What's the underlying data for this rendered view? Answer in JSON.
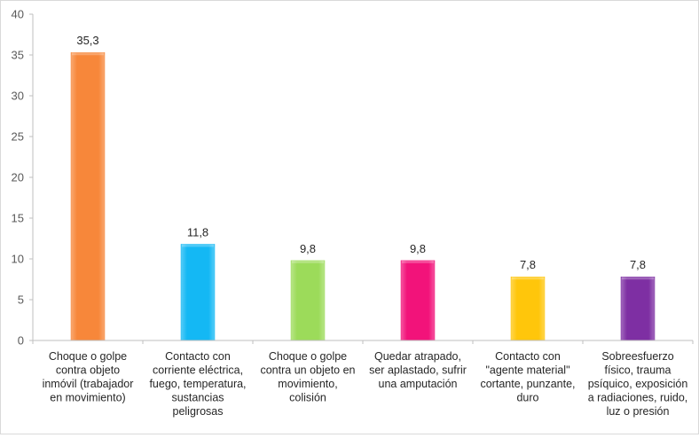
{
  "chart_data": {
    "type": "bar",
    "title": "",
    "xlabel": "",
    "ylabel": "",
    "ylim": [
      0,
      40
    ],
    "yticks": [
      0,
      5,
      10,
      15,
      20,
      25,
      30,
      35,
      40
    ],
    "grid": false,
    "legend": "none",
    "categories": [
      "Choque o golpe contra objeto inmóvil  (trabajador en movimiento)",
      "Contacto con corriente eléctrica, fuego, temperatura, sustancias peligrosas",
      "Choque o golpe contra un objeto en movimiento, colisión",
      "Quedar atrapado, ser aplastado, sufrir una amputación",
      "Contacto con \"agente material\" cortante, punzante, duro",
      "Sobreesfuerzo físico, trauma psíquico, exposición a radiaciones, ruido, luz o presión"
    ],
    "category_lines": [
      [
        "Choque o golpe",
        "contra objeto",
        "inmóvil  (trabajador",
        "en movimiento)"
      ],
      [
        "Contacto con",
        "corriente eléctrica,",
        "fuego, temperatura,",
        "sustancias",
        "peligrosas"
      ],
      [
        "Choque o golpe",
        "contra un objeto en",
        "movimiento,",
        "colisión"
      ],
      [
        "Quedar atrapado,",
        "ser aplastado, sufrir",
        "una amputación"
      ],
      [
        "Contacto con",
        "\"agente material\"",
        "cortante, punzante,",
        "duro"
      ],
      [
        "Sobreesfuerzo",
        "físico, trauma",
        "psíquico, exposición",
        "a radiaciones, ruido,",
        "luz o presión"
      ]
    ],
    "values": [
      35.3,
      11.8,
      9.8,
      9.8,
      7.8,
      7.8
    ],
    "value_labels": [
      "35,3",
      "11,8",
      "9,8",
      "9,8",
      "7,8",
      "7,8"
    ],
    "colors": [
      "#F7873A",
      "#14B8F4",
      "#9CDB5A",
      "#F2137A",
      "#FFC60B",
      "#7E2FA3"
    ]
  }
}
